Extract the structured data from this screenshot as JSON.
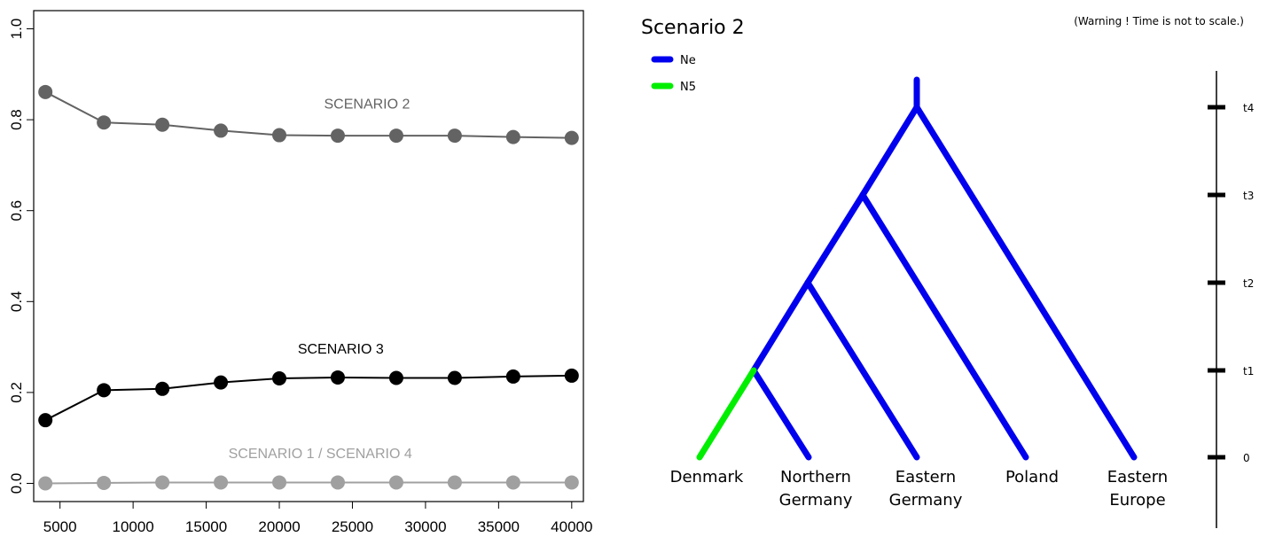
{
  "chart_data": [
    {
      "type": "line",
      "x": [
        4000,
        8000,
        12000,
        16000,
        20000,
        24000,
        28000,
        32000,
        36000,
        40000
      ],
      "xticks": [
        "5000",
        "10000",
        "15000",
        "20000",
        "25000",
        "30000",
        "35000",
        "40000"
      ],
      "xtick_values": [
        5000,
        10000,
        15000,
        20000,
        25000,
        30000,
        35000,
        40000
      ],
      "yticks": [
        "0.0",
        "0.2",
        "0.4",
        "0.6",
        "0.8",
        "1.0"
      ],
      "ytick_values": [
        0.0,
        0.2,
        0.4,
        0.6,
        0.8,
        1.0
      ],
      "xlim": [
        3200,
        40800
      ],
      "ylim": [
        -0.04,
        1.04
      ],
      "grid": false,
      "series": [
        {
          "name": "SCENARIO 2",
          "values": [
            0.861,
            0.794,
            0.789,
            0.776,
            0.766,
            0.765,
            0.765,
            0.765,
            0.762,
            0.76
          ],
          "color": "#636363",
          "label_x": 26000,
          "label_y": 0.825
        },
        {
          "name": "SCENARIO 3",
          "values": [
            0.139,
            0.205,
            0.208,
            0.222,
            0.231,
            0.233,
            0.232,
            0.232,
            0.235,
            0.237
          ],
          "color": "#000000",
          "label_x": 24200,
          "label_y": 0.286
        },
        {
          "name": "SCENARIO 1 / SCENARIO 4",
          "values": [
            0.0,
            0.001,
            0.002,
            0.002,
            0.002,
            0.002,
            0.002,
            0.002,
            0.002,
            0.002
          ],
          "color": "#a0a0a0",
          "label_x": 22800,
          "label_y": 0.056
        }
      ]
    },
    {
      "type": "diagram",
      "title": "Scenario 2",
      "warning": "(Warning ! Time is not to scale.)",
      "legend": [
        {
          "label": "Ne",
          "color": "#0000ee"
        },
        {
          "label": "N5",
          "color": "#00ee00"
        }
      ],
      "populations": [
        {
          "line1": "Denmark",
          "line2": ""
        },
        {
          "line1": "Northern",
          "line2": "Germany"
        },
        {
          "line1": "Eastern",
          "line2": "Germany"
        },
        {
          "line1": "Poland",
          "line2": ""
        },
        {
          "line1": "Eastern",
          "line2": "Europe"
        }
      ],
      "time_ticks": [
        "0",
        "t1",
        "t2",
        "t3",
        "t4"
      ]
    }
  ]
}
